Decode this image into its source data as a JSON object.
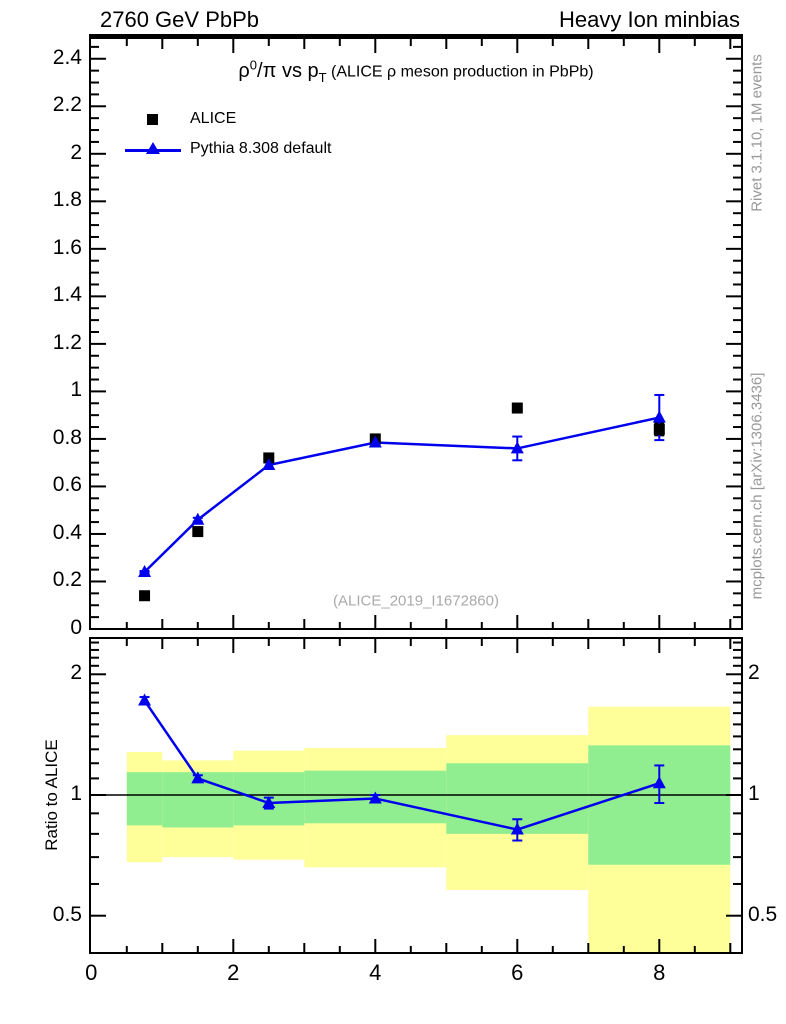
{
  "header": {
    "left": "2760 GeV PbPb",
    "right": "Heavy Ion minbias"
  },
  "title": {
    "rho": "ρ",
    "sup": "0",
    "mid": "/π vs p",
    "sub": "T",
    "paren": " (ALICE ρ meson production in PbPb)"
  },
  "legend": {
    "items": [
      {
        "label": "ALICE",
        "marker": "black-square"
      },
      {
        "label": "Pythia 8.308 default",
        "marker": "blue-line-triangle"
      }
    ]
  },
  "watermark": "(ALICE_2019_I1672860)",
  "side_notes": {
    "top": "Rivet 3.1.10,  1M events",
    "bottom": "mcplots.cern.ch [arXiv:1306.3436]"
  },
  "ratio_ylabel": "Ratio to ALICE",
  "colors": {
    "pythia_blue": "#0000ee",
    "alice_black": "#000000",
    "band_yellow": "#ffff99",
    "band_green": "#90ee90",
    "gray_text": "#999999",
    "frame": "#000000"
  },
  "chart_data": [
    {
      "type": "scatter",
      "panel": "main",
      "title": "rho0/pi vs pT (ALICE rho meson production in PbPb)",
      "x": [
        0.75,
        1.5,
        2.5,
        4,
        6,
        8
      ],
      "series": [
        {
          "name": "ALICE",
          "marker": "square",
          "color": "#000000",
          "values": [
            0.14,
            0.41,
            0.72,
            0.8,
            0.93,
            0.84
          ],
          "errors": [
            0.006,
            0.008,
            0.01,
            0.01,
            0.012,
            0.025
          ]
        },
        {
          "name": "Pythia 8.308 default",
          "marker": "triangle",
          "color": "#0000ee",
          "line": true,
          "values": [
            0.24,
            0.46,
            0.69,
            0.785,
            0.76,
            0.89
          ],
          "errors": [
            0.004,
            0.008,
            0.012,
            0.012,
            0.05,
            0.095
          ]
        }
      ],
      "xlim": [
        0,
        9.17
      ],
      "ylim": [
        0,
        2.5
      ],
      "grid": false,
      "legend_position": "top-left",
      "yticks": {
        "label_values": [
          0.2,
          0.4,
          0.6,
          0.8,
          1,
          1.2,
          1.4,
          1.6,
          1.8,
          2,
          2.2,
          2.4
        ],
        "labels": [
          "0.2",
          "0.4",
          "0.6",
          "0.8",
          "1",
          "1.2",
          "1.4",
          "1.6",
          "1.8",
          "2",
          "2.2",
          "2.4"
        ],
        "zero_label": "0",
        "minor_step": 0.05,
        "major_step": 0.2
      },
      "xticks": {
        "labeled_values": [
          0,
          2,
          4,
          6,
          8
        ],
        "labels": [
          "0",
          "2",
          "4",
          "6",
          "8"
        ],
        "integer_step": 1,
        "minor_step": 0.5
      }
    },
    {
      "type": "line",
      "panel": "ratio",
      "ylabel": "Ratio to ALICE",
      "yscale": "log",
      "ylim": [
        0.4,
        2.46
      ],
      "x": [
        0.75,
        1.5,
        2.5,
        4,
        6,
        8
      ],
      "series_name": "Pythia 8.308 default",
      "values": [
        1.72,
        1.1,
        0.955,
        0.98,
        0.82,
        1.07
      ],
      "errors": [
        0.035,
        0.02,
        0.03,
        0.02,
        0.05,
        0.115
      ],
      "ref_line": 1.0,
      "yticks": {
        "label_values": [
          0.5,
          1,
          2
        ],
        "labels": [
          "0.5",
          "1",
          "2"
        ],
        "minor": [
          0.4,
          0.6,
          0.7,
          0.8,
          0.9,
          1.1,
          1.2,
          1.3,
          1.4,
          1.5,
          1.6,
          1.7,
          1.8,
          1.9,
          2.1,
          2.2,
          2.3,
          2.4
        ]
      },
      "bands": {
        "edges": [
          0.5,
          1,
          2,
          3,
          5,
          7,
          9
        ],
        "yellow_hi": [
          1.28,
          1.22,
          1.29,
          1.31,
          1.41,
          1.66
        ],
        "yellow_lo": [
          0.68,
          0.7,
          0.69,
          0.66,
          0.58,
          0.38
        ],
        "green_hi": [
          1.14,
          1.14,
          1.14,
          1.15,
          1.2,
          1.33
        ],
        "green_lo": [
          0.84,
          0.83,
          0.84,
          0.85,
          0.8,
          0.67
        ]
      }
    }
  ]
}
